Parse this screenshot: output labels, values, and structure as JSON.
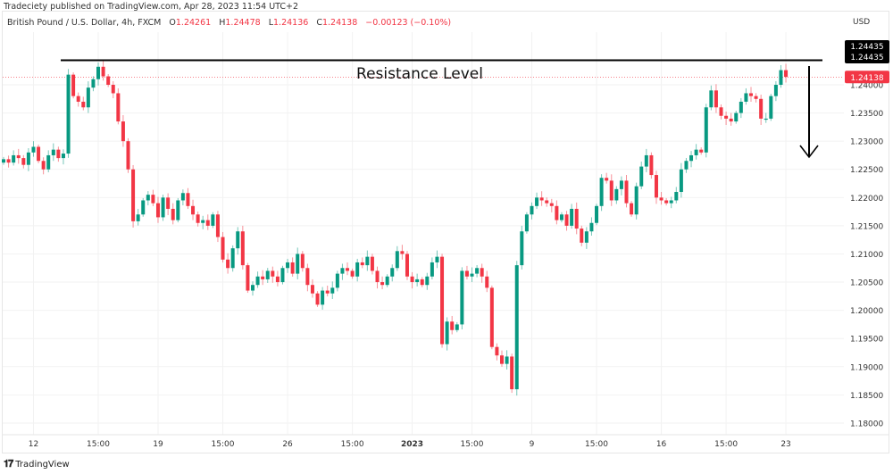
{
  "publisher": "Tradeciety published on TradingView.com, Apr 28, 2023 11:54 UTC+2",
  "legend": {
    "symbol": "British Pound / U.S. Dollar, 4h, FXCM",
    "open_label": "O",
    "open": "1.24261",
    "high_label": "H",
    "high": "1.24478",
    "low_label": "L",
    "low": "1.24136",
    "close_label": "C",
    "close": "1.24138",
    "change": "−0.00123 (−0.10%)"
  },
  "currency": "USD",
  "footer": {
    "brand": "TradingView",
    "logo": "17"
  },
  "colors": {
    "up": "#089981",
    "down": "#f23645",
    "annotation": "#000000",
    "grid": "#f2f2f2"
  },
  "chart_data": {
    "type": "candlestick",
    "title": "",
    "ylim": [
      1.177,
      1.2475
    ],
    "grid": true,
    "y_ticks": [
      "1.18000",
      "1.18500",
      "1.19000",
      "1.19500",
      "1.20000",
      "1.20500",
      "1.21000",
      "1.21500",
      "1.22000",
      "1.22500",
      "1.23000",
      "1.23500",
      "1.24000"
    ],
    "x_ticks": [
      {
        "label": "12",
        "index": 6,
        "bold": false
      },
      {
        "label": "15:00",
        "index": 19,
        "bold": false
      },
      {
        "label": "19",
        "index": 31,
        "bold": false
      },
      {
        "label": "15:00",
        "index": 44,
        "bold": false
      },
      {
        "label": "26",
        "index": 57,
        "bold": false
      },
      {
        "label": "15:00",
        "index": 70,
        "bold": false
      },
      {
        "label": "2023",
        "index": 82,
        "bold": true
      },
      {
        "label": "15:00",
        "index": 94,
        "bold": false
      },
      {
        "label": "9",
        "index": 106,
        "bold": false
      },
      {
        "label": "15:00",
        "index": 119,
        "bold": false
      },
      {
        "label": "16",
        "index": 132,
        "bold": false
      },
      {
        "label": "15:00",
        "index": 145,
        "bold": false
      },
      {
        "label": "23",
        "index": 157,
        "bold": false
      }
    ],
    "first_open": 1.2262,
    "close": [
      1.2268,
      1.2262,
      1.2275,
      1.227,
      1.2258,
      1.228,
      1.229,
      1.2265,
      1.225,
      1.2275,
      1.2285,
      1.227,
      1.2278,
      1.2418,
      1.238,
      1.237,
      1.236,
      1.2395,
      1.241,
      1.2432,
      1.2415,
      1.24,
      1.2385,
      1.2335,
      1.23,
      1.225,
      1.2158,
      1.217,
      1.2195,
      1.2205,
      1.219,
      1.2165,
      1.22,
      1.218,
      1.216,
      1.2195,
      1.2208,
      1.2185,
      1.217,
      1.2155,
      1.216,
      1.215,
      1.217,
      1.213,
      1.209,
      1.2075,
      1.211,
      1.214,
      1.208,
      1.2035,
      1.2045,
      1.206,
      1.2055,
      1.207,
      1.206,
      1.205,
      1.2075,
      1.2085,
      1.2065,
      1.21,
      1.2075,
      1.2045,
      1.203,
      1.201,
      1.2035,
      1.203,
      1.204,
      1.2065,
      1.2075,
      1.207,
      1.206,
      1.2085,
      1.208,
      1.2095,
      1.207,
      1.205,
      1.2045,
      1.206,
      1.2075,
      1.2105,
      1.21,
      1.206,
      1.205,
      1.2055,
      1.2045,
      1.206,
      1.2085,
      1.2095,
      1.194,
      1.198,
      1.1965,
      1.1975,
      1.207,
      1.206,
      1.2065,
      1.2075,
      1.206,
      1.204,
      1.1935,
      1.192,
      1.1905,
      1.1918,
      1.186,
      1.208,
      1.214,
      1.217,
      1.2185,
      1.22,
      1.2195,
      1.219,
      1.2185,
      1.216,
      1.217,
      1.215,
      1.218,
      1.2145,
      1.212,
      1.214,
      1.2155,
      1.2185,
      1.2235,
      1.223,
      1.2195,
      1.2215,
      1.223,
      1.219,
      1.217,
      1.222,
      1.2255,
      1.2275,
      1.224,
      1.22,
      1.2195,
      1.219,
      1.2195,
      1.221,
      1.225,
      1.2265,
      1.2275,
      1.2285,
      1.228,
      1.236,
      1.239,
      1.236,
      1.2345,
      1.234,
      1.2335,
      1.235,
      1.237,
      1.2385,
      1.238,
      1.2375,
      1.234,
      1.234,
      1.238,
      1.24,
      1.2426,
      1.2414
    ],
    "price_labels": {
      "resistance": "1.24435",
      "resistance_2": "1.24435",
      "last": "1.24138"
    },
    "resistance_level": 1.24435,
    "last_price": 1.24138,
    "annotations": {
      "resistance_text": "Resistance Level",
      "arrow": "down"
    }
  }
}
